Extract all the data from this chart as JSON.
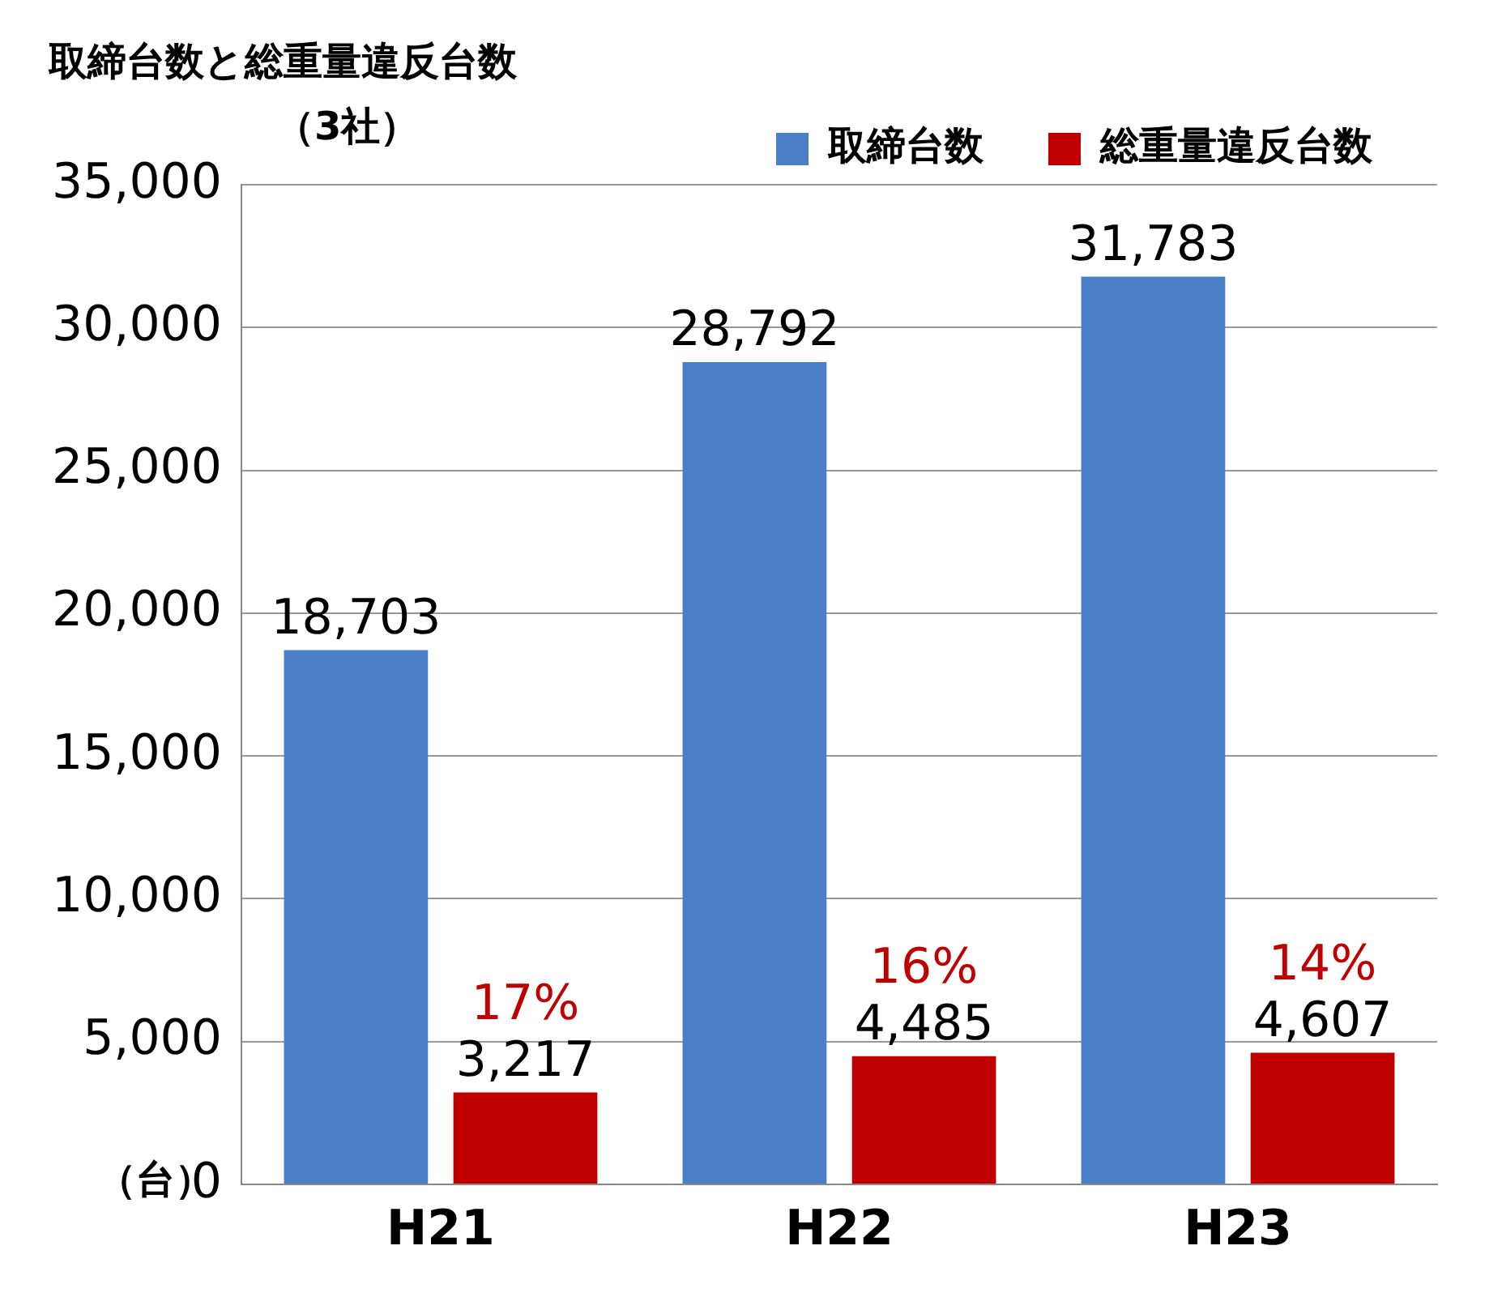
{
  "chart_data": {
    "type": "bar",
    "title": "取締台数と総重量違反台数",
    "subtitle": "（3社）",
    "ylabel": "（台）",
    "categories": [
      "H21",
      "H22",
      "H23"
    ],
    "series": [
      {
        "name": "取締台数",
        "color": "#4a7fc8",
        "values": [
          18703,
          28792,
          31783
        ],
        "value_labels": [
          "18,703",
          "28,792",
          "31,783"
        ]
      },
      {
        "name": "総重量違反台数",
        "color": "#c00000",
        "values": [
          3217,
          4485,
          4607
        ],
        "value_labels": [
          "3,217",
          "4,485",
          "4,607"
        ]
      }
    ],
    "ylim": [
      0,
      35000
    ],
    "yticks": [
      {
        "value": 0,
        "label": "0"
      },
      {
        "value": 5000,
        "label": "5,000"
      },
      {
        "value": 10000,
        "label": "10,000"
      },
      {
        "value": 15000,
        "label": "15,000"
      },
      {
        "value": 20000,
        "label": "20,000"
      },
      {
        "value": 25000,
        "label": "25,000"
      },
      {
        "value": 30000,
        "label": "30,000"
      },
      {
        "value": 35000,
        "label": "35,000"
      }
    ],
    "grid": "y",
    "legend": "top right",
    "annotations": [
      "17%",
      "16%",
      "14%"
    ]
  }
}
